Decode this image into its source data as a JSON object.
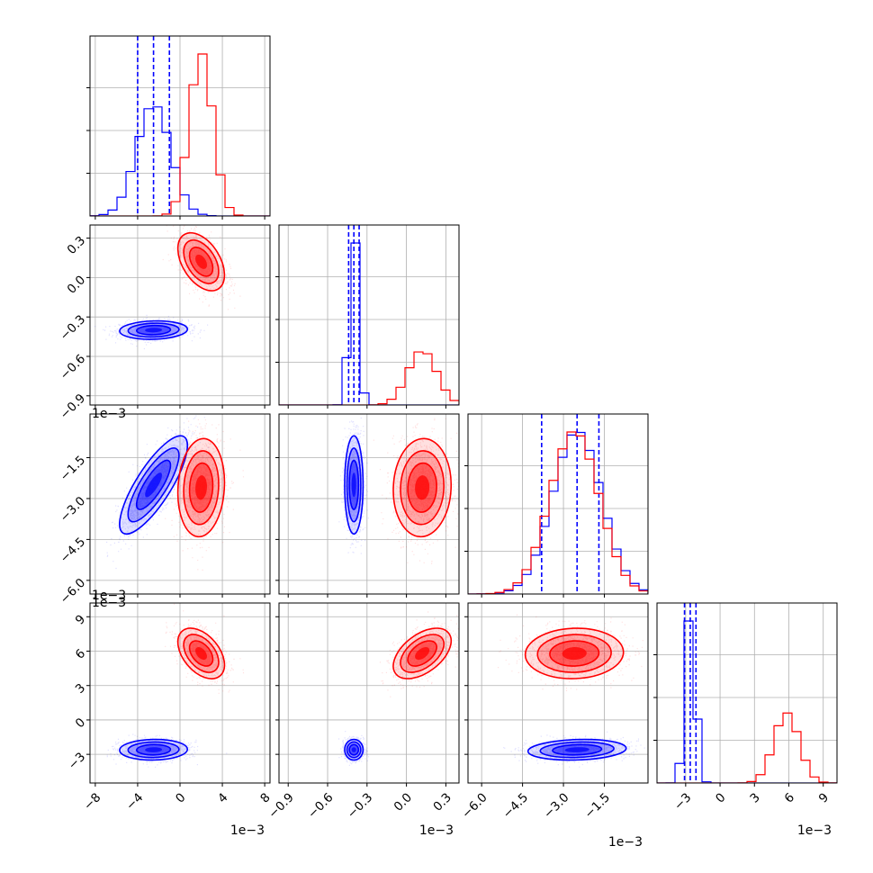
{
  "chart_data": {
    "type": "corner",
    "grid": true,
    "colors": {
      "blue": "#0000ff",
      "red": "#ff0000",
      "grid": "#b0b0b0"
    },
    "variables": [
      {
        "range": [
          -0.0085,
          0.0085
        ],
        "ticks": [
          -0.008,
          -0.004,
          0.0,
          0.004,
          0.008
        ],
        "tick_labels": [
          "−8",
          "−4",
          "0",
          "4",
          "8"
        ],
        "offset_label": "1e−3"
      },
      {
        "range": [
          -0.00097,
          0.0004
        ],
        "ticks": [
          -0.0009,
          -0.0006,
          -0.0003,
          0.0,
          0.0003
        ],
        "tick_labels": [
          "−0.9",
          "−0.6",
          "−0.3",
          "0.0",
          "0.3"
        ],
        "offset_label": "1e−3"
      },
      {
        "range": [
          -0.0065,
          0.0001
        ],
        "ticks": [
          -0.006,
          -0.0045,
          -0.003,
          -0.0015
        ],
        "tick_labels": [
          "−6.0",
          "−4.5",
          "−3.0",
          "−1.5"
        ],
        "offset_label": "1e−3"
      },
      {
        "range": [
          -0.0055,
          0.0102
        ],
        "ticks": [
          -0.003,
          0.0,
          0.003,
          0.006,
          0.009
        ],
        "tick_labels": [
          "−3",
          "0",
          "3",
          "6",
          "9"
        ],
        "offset_label": "1e−3"
      }
    ],
    "series": [
      {
        "color": "#0000ff",
        "mean": [
          -0.0025,
          -0.0004,
          -0.0025,
          -0.0026
        ],
        "std": [
          0.0016,
          3.5e-05,
          0.0009,
          0.00045
        ],
        "quantiles": [
          [
            -0.004,
            -0.0025,
            -0.001
          ],
          [
            -0.00044,
            -0.0004,
            -0.00036
          ],
          [
            -0.0038,
            -0.0025,
            -0.0017
          ],
          [
            -0.0031,
            -0.0026,
            -0.0021
          ]
        ]
      },
      {
        "color": "#ff0000",
        "mean": [
          0.002,
          0.00012,
          -0.0026,
          0.0058
        ],
        "std": [
          0.0011,
          0.00011,
          0.0009,
          0.0011
        ],
        "quantiles": null
      }
    ],
    "correlations": {
      "blue": {
        "1-0": 0.1,
        "2-0": 0.8,
        "2-1": 0.0,
        "3-0": 0.05,
        "3-1": 0.0,
        "3-2": 0.15
      },
      "red": {
        "1-0": -0.45,
        "2-0": 0.1,
        "2-1": 0.05,
        "3-0": -0.45,
        "3-1": 0.5,
        "3-2": 0.05
      }
    }
  }
}
